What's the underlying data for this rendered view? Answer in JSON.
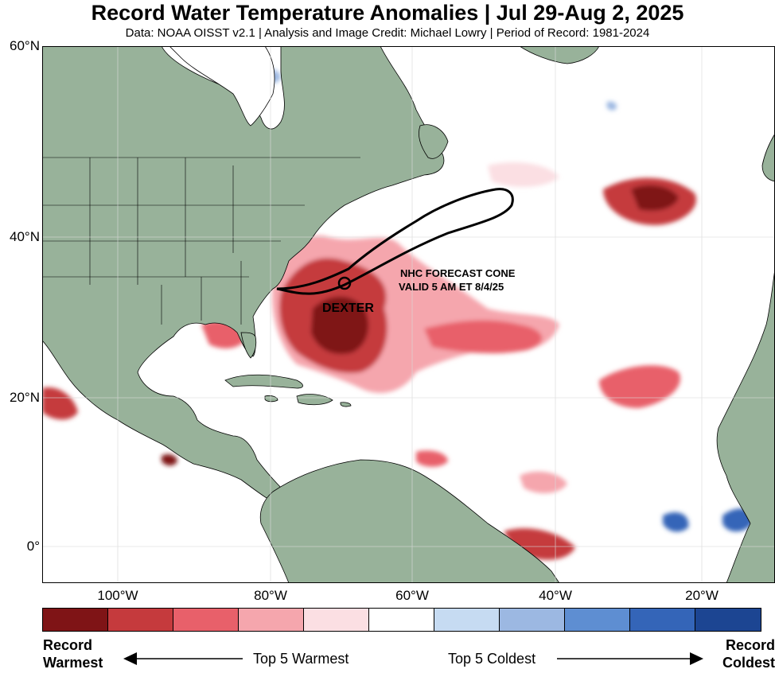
{
  "title": "Record Water Temperature Anomalies | Jul 29-Aug 2, 2025",
  "subtitle": "Data: NOAA OISST v2.1 | Analysis and Image Credit: Michael Lowry | Period of Record: 1981-2024",
  "latitude_labels": [
    "60°N",
    "40°N",
    "20°N",
    "0°"
  ],
  "longitude_labels": [
    "100°W",
    "80°W",
    "60°W",
    "40°W",
    "20°W"
  ],
  "storm": {
    "name": "DEXTER",
    "cone_label_line1": "NHC FORECAST CONE",
    "cone_label_line2": "VALID 5 AM ET 8/4/25"
  },
  "legend": {
    "left_line1": "Record",
    "left_line2": "Warmest",
    "right_line1": "Record",
    "right_line2": "Coldest",
    "warm_text": "Top 5 Warmest",
    "cold_text": "Top 5 Coldest",
    "colors": [
      "#7f1416",
      "#c53a3d",
      "#e8606a",
      "#f5a6ad",
      "#fbdfe3",
      "#ffffff",
      "#c6dbf2",
      "#9cb8e2",
      "#5e8ed2",
      "#3465b8",
      "#1c4592"
    ]
  },
  "colors": {
    "land": "#98b29a",
    "ocean": "#ffffff",
    "border": "#000000"
  }
}
